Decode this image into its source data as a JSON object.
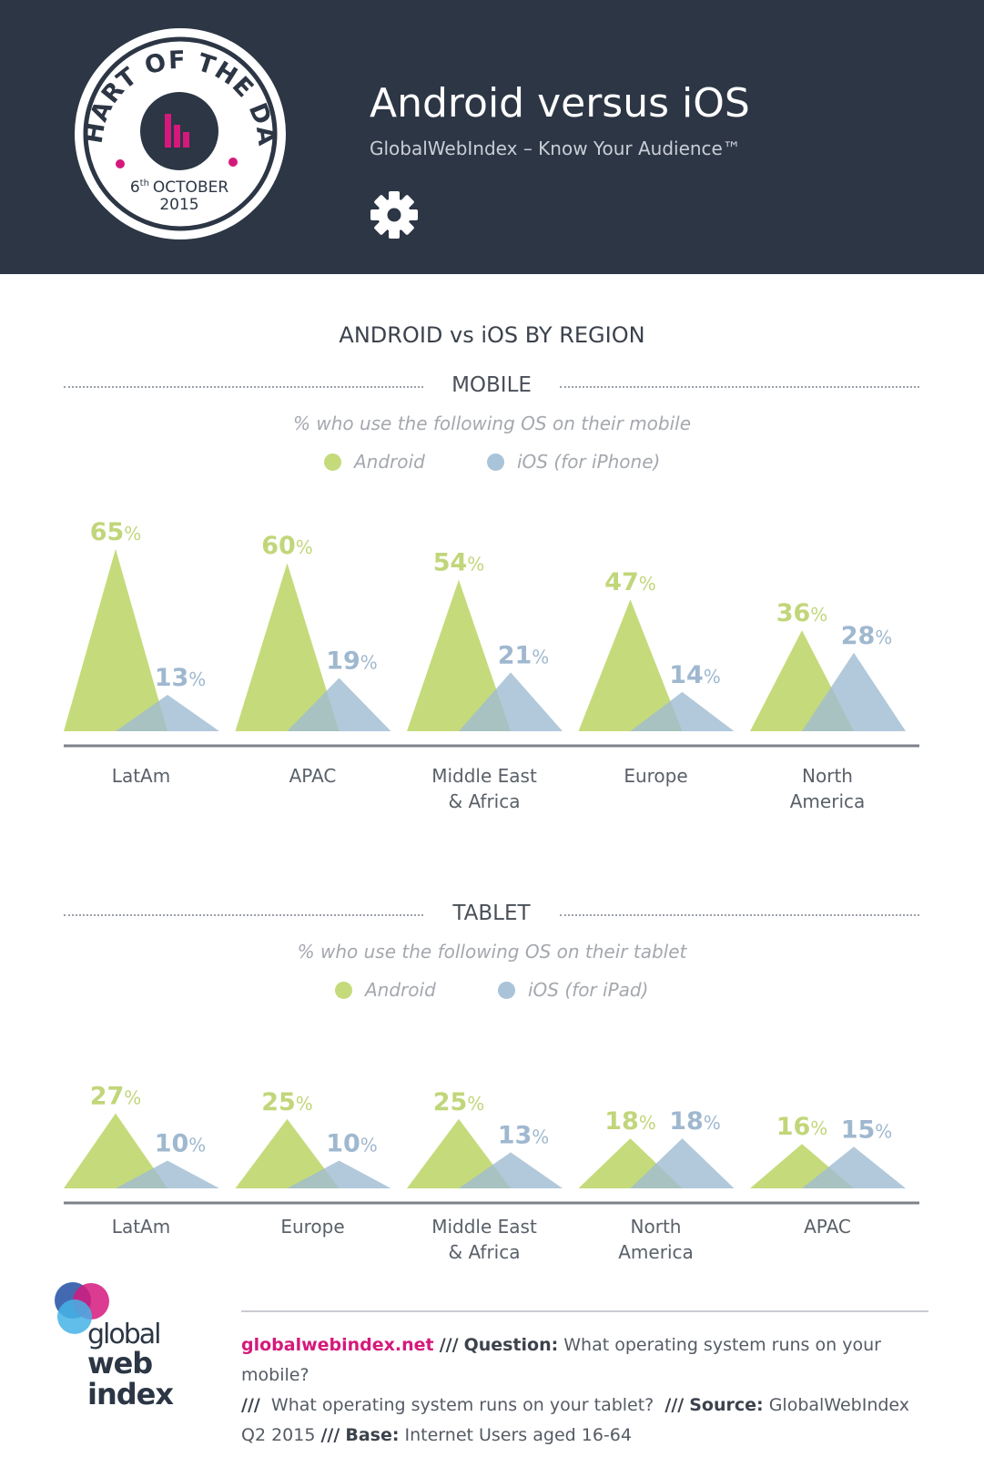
{
  "header": {
    "badge_top": "CHART OF THE DAY",
    "badge_day": "6",
    "badge_day_suffix": "th",
    "badge_month": "OCTOBER",
    "badge_year": "2015",
    "title": "Android versus iOS",
    "subtitle": "GlobalWebIndex – Know Your Audience™",
    "gear_icon": "gear-icon"
  },
  "main_title": "ANDROID vs iOS BY REGION",
  "colors": {
    "android": "#c5db7b",
    "ios": "#9fbbd2",
    "android_label": "#c1d67a",
    "ios_label": "#9fb8cf",
    "dark": "#2c3645",
    "accent": "#d5197c"
  },
  "chart_data": [
    {
      "type": "area",
      "section": "MOBILE",
      "question": "% who use the following OS on their mobile",
      "legend": [
        "Android",
        "iOS (for iPhone)"
      ],
      "categories": [
        "LatAm",
        "APAC",
        "Middle East & Africa",
        "Europe",
        "North America"
      ],
      "category_lines": [
        [
          "LatAm"
        ],
        [
          "APAC"
        ],
        [
          "Middle East",
          "& Africa"
        ],
        [
          "Europe"
        ],
        [
          "North",
          "America"
        ]
      ],
      "series": [
        {
          "name": "Android",
          "values": [
            65,
            60,
            54,
            47,
            36
          ]
        },
        {
          "name": "iOS (for iPhone)",
          "values": [
            13,
            19,
            21,
            14,
            28
          ]
        }
      ],
      "unit": "%"
    },
    {
      "type": "area",
      "section": "TABLET",
      "question": "% who use the following OS on their tablet",
      "legend": [
        "Android",
        "iOS (for iPad)"
      ],
      "categories": [
        "LatAm",
        "Europe",
        "Middle East & Africa",
        "North America",
        "APAC"
      ],
      "category_lines": [
        [
          "LatAm"
        ],
        [
          "Europe"
        ],
        [
          "Middle East",
          "& Africa"
        ],
        [
          "North",
          "America"
        ],
        [
          "APAC"
        ]
      ],
      "series": [
        {
          "name": "Android",
          "values": [
            27,
            25,
            25,
            18,
            16
          ]
        },
        {
          "name": "iOS (for iPad)",
          "values": [
            10,
            10,
            13,
            18,
            15
          ]
        }
      ],
      "unit": "%"
    }
  ],
  "footer": {
    "site": "globalwebindex.net",
    "sep": "///",
    "question_label": "Question:",
    "question1": "What operating system runs on your mobile?",
    "question2": "What operating system runs on your tablet?",
    "source_label": "Source:",
    "source": "GlobalWebIndex Q2 2015",
    "base_label": "Base:",
    "base": "Internet Users aged 16-64"
  },
  "logo": {
    "line1": "global",
    "line2": "web",
    "line3": "index"
  }
}
